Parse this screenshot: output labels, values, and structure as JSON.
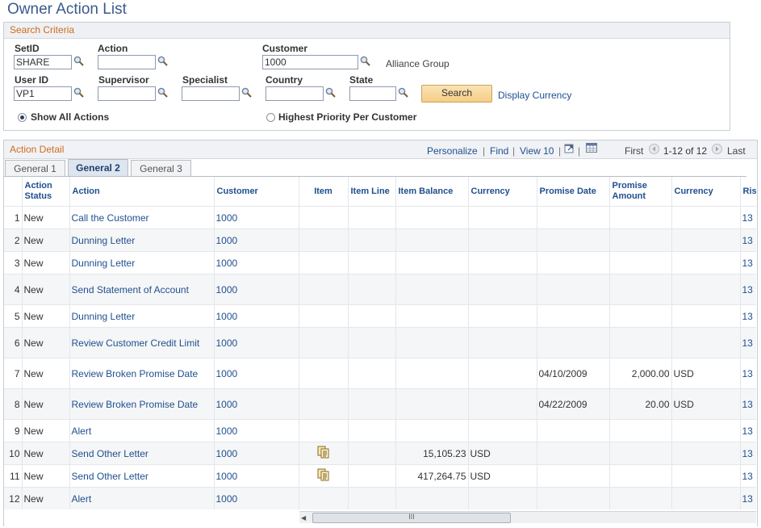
{
  "page": {
    "title": "Owner Action List"
  },
  "search": {
    "header": "Search Criteria",
    "setid": {
      "label": "SetID",
      "value": "SHARE"
    },
    "action": {
      "label": "Action",
      "value": ""
    },
    "customer": {
      "label": "Customer",
      "value": "1000",
      "name": "Alliance Group"
    },
    "userid": {
      "label": "User ID",
      "value": "VP1"
    },
    "supervisor": {
      "label": "Supervisor",
      "value": ""
    },
    "specialist": {
      "label": "Specialist",
      "value": ""
    },
    "country": {
      "label": "Country",
      "value": ""
    },
    "state": {
      "label": "State",
      "value": ""
    },
    "search_button": "Search",
    "display_currency": "Display Currency",
    "radio_all": "Show All Actions",
    "radio_priority": "Highest Priority Per Customer"
  },
  "detail": {
    "header": "Action Detail",
    "personalize": "Personalize",
    "find": "Find",
    "view": "View 10",
    "first": "First",
    "range": "1-12 of 12",
    "last": "Last",
    "sep": "|",
    "tabs": [
      "General 1",
      "General 2",
      "General 3"
    ],
    "columns": {
      "status": "Action Status",
      "action": "Action",
      "customer": "Customer",
      "item": "Item",
      "item_line": "Item Line",
      "item_balance": "Item Balance",
      "currency": "Currency",
      "promise_date": "Promise Date",
      "promise_amount": "Promise Amount",
      "currency2": "Currency",
      "risk": "Ris"
    },
    "rows": [
      {
        "n": "1",
        "status": "New",
        "action": "Call the Customer",
        "customer": "1000",
        "item": false,
        "balance": "",
        "cur": "",
        "pdate": "",
        "pamt": "",
        "cur2": "",
        "risk": "13"
      },
      {
        "n": "2",
        "status": "New",
        "action": "Dunning Letter",
        "customer": "1000",
        "item": false,
        "balance": "",
        "cur": "",
        "pdate": "",
        "pamt": "",
        "cur2": "",
        "risk": "13"
      },
      {
        "n": "3",
        "status": "New",
        "action": "Dunning Letter",
        "customer": "1000",
        "item": false,
        "balance": "",
        "cur": "",
        "pdate": "",
        "pamt": "",
        "cur2": "",
        "risk": "13"
      },
      {
        "n": "4",
        "status": "New",
        "action": "Send Statement of Account",
        "customer": "1000",
        "item": false,
        "balance": "",
        "cur": "",
        "pdate": "",
        "pamt": "",
        "cur2": "",
        "risk": "13"
      },
      {
        "n": "5",
        "status": "New",
        "action": "Dunning Letter",
        "customer": "1000",
        "item": false,
        "balance": "",
        "cur": "",
        "pdate": "",
        "pamt": "",
        "cur2": "",
        "risk": "13"
      },
      {
        "n": "6",
        "status": "New",
        "action": "Review Customer Credit Limit",
        "customer": "1000",
        "item": false,
        "balance": "",
        "cur": "",
        "pdate": "",
        "pamt": "",
        "cur2": "",
        "risk": "13"
      },
      {
        "n": "7",
        "status": "New",
        "action": "Review Broken Promise Date",
        "customer": "1000",
        "item": false,
        "balance": "",
        "cur": "",
        "pdate": "04/10/2009",
        "pamt": "2,000.00",
        "cur2": "USD",
        "risk": "13"
      },
      {
        "n": "8",
        "status": "New",
        "action": "Review Broken Promise Date",
        "customer": "1000",
        "item": false,
        "balance": "",
        "cur": "",
        "pdate": "04/22/2009",
        "pamt": "20.00",
        "cur2": "USD",
        "risk": "13"
      },
      {
        "n": "9",
        "status": "New",
        "action": "Alert",
        "customer": "1000",
        "item": false,
        "balance": "",
        "cur": "",
        "pdate": "",
        "pamt": "",
        "cur2": "",
        "risk": "13"
      },
      {
        "n": "10",
        "status": "New",
        "action": "Send Other Letter",
        "customer": "1000",
        "item": true,
        "balance": "15,105.23",
        "cur": "USD",
        "pdate": "",
        "pamt": "",
        "cur2": "",
        "risk": "13"
      },
      {
        "n": "11",
        "status": "New",
        "action": "Send Other Letter",
        "customer": "1000",
        "item": true,
        "balance": "417,264.75",
        "cur": "USD",
        "pdate": "",
        "pamt": "",
        "cur2": "",
        "risk": "13"
      },
      {
        "n": "12",
        "status": "New",
        "action": "Alert",
        "customer": "1000",
        "item": false,
        "balance": "",
        "cur": "",
        "pdate": "",
        "pamt": "",
        "cur2": "",
        "risk": "13"
      }
    ],
    "scroll_grip": "III"
  },
  "colors": {
    "accent": "#d06c1d",
    "link": "#1f4f8f",
    "title": "#3a5a8c"
  },
  "icons": [
    "search-icon",
    "item-detail-icon",
    "new-window-icon",
    "spreadsheet-icon",
    "first-arrow-icon",
    "last-arrow-icon"
  ]
}
